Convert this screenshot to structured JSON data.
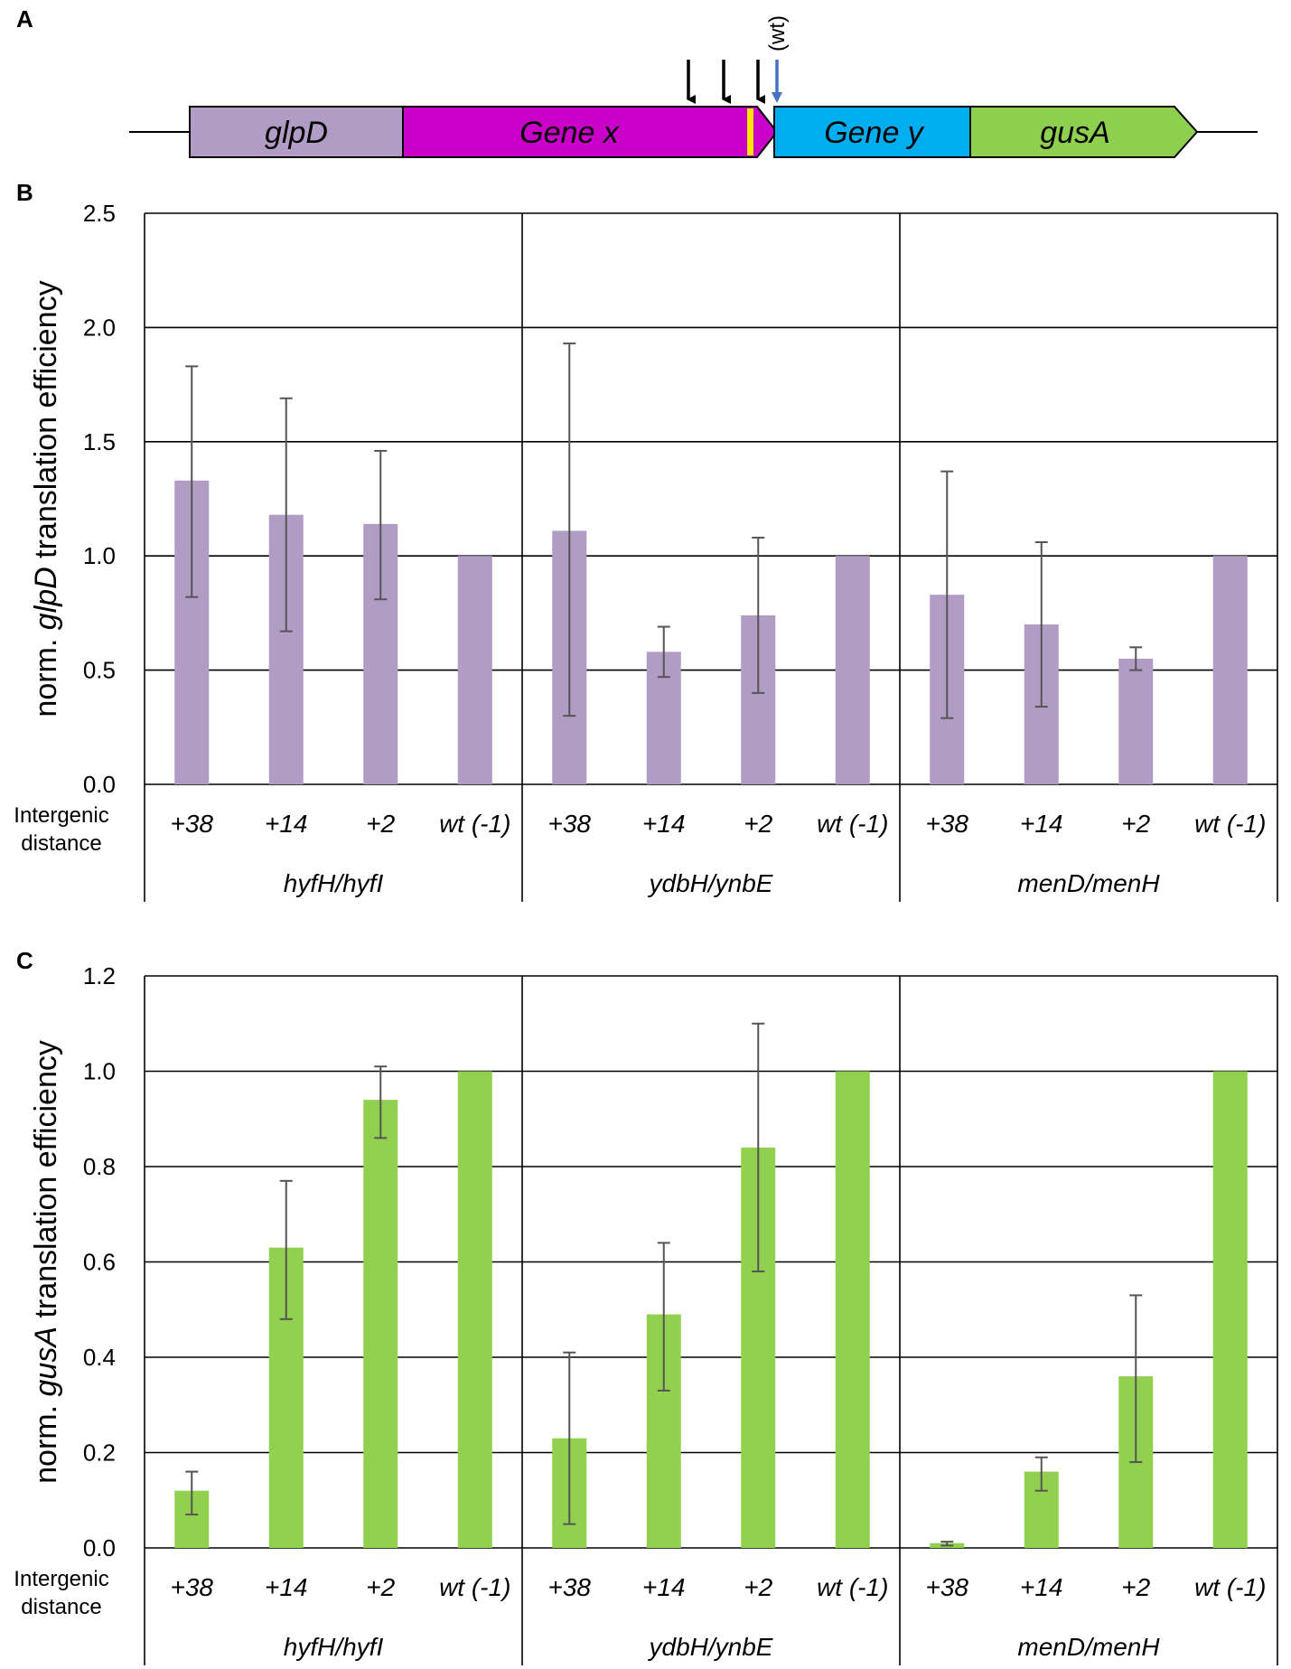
{
  "panels": {
    "a": "A",
    "b": "B",
    "c": "C"
  },
  "construct": {
    "genes": [
      "glpD",
      "Gene x",
      "Gene y",
      "gusA"
    ],
    "wt_label": "(wt)",
    "colors": {
      "glpD": "#b09cc4",
      "gene_x": "#c800c8",
      "gene_y": "#00adef",
      "gusA": "#8fcf4f",
      "stop_mark": "#ffe500",
      "wt_arrow": "#4472c4"
    }
  },
  "axis_text": {
    "row_label_line1": "Intergenic",
    "row_label_line2": "distance"
  },
  "chart_data": [
    {
      "type": "bar",
      "panel": "B",
      "ylabel_prefix": "norm. ",
      "ylabel_gene": "glpD",
      "ylabel_suffix": " translation efficiency",
      "ylim": [
        0,
        2.5
      ],
      "yticks": [
        "0.0",
        "0.5",
        "1.0",
        "1.5",
        "2.0",
        "2.5"
      ],
      "bar_color": "#b09cc4",
      "groups": [
        {
          "name": "hyfH/hyfI",
          "categories": [
            "+38",
            "+14",
            "+2",
            "wt (-1)"
          ],
          "values": [
            1.33,
            1.18,
            1.14,
            1.0
          ],
          "err_low": [
            0.82,
            0.67,
            0.81,
            null
          ],
          "err_high": [
            1.83,
            1.69,
            1.46,
            null
          ]
        },
        {
          "name": "ydbH/ynbE",
          "categories": [
            "+38",
            "+14",
            "+2",
            "wt (-1)"
          ],
          "values": [
            1.11,
            0.58,
            0.74,
            1.0
          ],
          "err_low": [
            0.3,
            0.47,
            0.4,
            null
          ],
          "err_high": [
            1.93,
            0.69,
            1.08,
            null
          ]
        },
        {
          "name": "menD/menH",
          "categories": [
            "+38",
            "+14",
            "+2",
            "wt (-1)"
          ],
          "values": [
            0.83,
            0.7,
            0.55,
            1.0
          ],
          "err_low": [
            0.29,
            0.34,
            0.5,
            null
          ],
          "err_high": [
            1.37,
            1.06,
            0.6,
            null
          ]
        }
      ]
    },
    {
      "type": "bar",
      "panel": "C",
      "ylabel_prefix": "norm. ",
      "ylabel_gene": "gusA",
      "ylabel_suffix": " translation efficiency",
      "ylim": [
        0,
        1.2
      ],
      "yticks": [
        "0.0",
        "0.2",
        "0.4",
        "0.6",
        "0.8",
        "1.0",
        "1.2"
      ],
      "bar_color": "#92d050",
      "groups": [
        {
          "name": "hyfH/hyfI",
          "categories": [
            "+38",
            "+14",
            "+2",
            "wt (-1)"
          ],
          "values": [
            0.12,
            0.63,
            0.94,
            1.0
          ],
          "err_low": [
            0.07,
            0.48,
            0.86,
            null
          ],
          "err_high": [
            0.16,
            0.77,
            1.01,
            null
          ]
        },
        {
          "name": "ydbH/ynbE",
          "categories": [
            "+38",
            "+14",
            "+2",
            "wt (-1)"
          ],
          "values": [
            0.23,
            0.49,
            0.84,
            1.0
          ],
          "err_low": [
            0.05,
            0.33,
            0.58,
            null
          ],
          "err_high": [
            0.41,
            0.64,
            1.1,
            null
          ]
        },
        {
          "name": "menD/menH",
          "categories": [
            "+38",
            "+14",
            "+2",
            "wt (-1)"
          ],
          "values": [
            0.01,
            0.16,
            0.36,
            1.0
          ],
          "err_low": [
            0.005,
            0.12,
            0.18,
            null
          ],
          "err_high": [
            0.013,
            0.19,
            0.53,
            null
          ]
        }
      ]
    }
  ]
}
